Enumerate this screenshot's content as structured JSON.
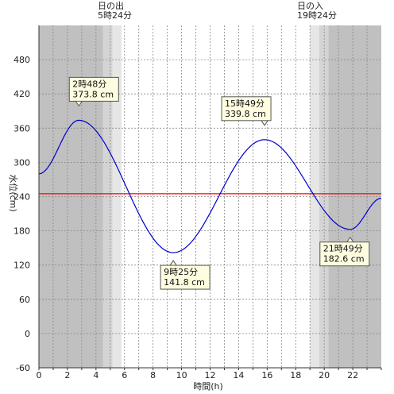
{
  "chart_data": {
    "type": "line",
    "xlabel": "時間(h)",
    "ylabel": "水位(cm)",
    "xlim": [
      0,
      24
    ],
    "ylim": [
      -60,
      540
    ],
    "x_ticks": [
      "0",
      "2",
      "4",
      "6",
      "8",
      "10",
      "12",
      "14",
      "16",
      "18",
      "20",
      "22"
    ],
    "y_ticks": [
      "-60",
      "0",
      "60",
      "120",
      "180",
      "240",
      "300",
      "360",
      "420",
      "480"
    ],
    "grid": true,
    "reference_line": {
      "value": 245,
      "color": "#ff0000"
    },
    "sunrise": {
      "label": "日の出",
      "time_label": "5時24分",
      "hour": 5.4
    },
    "sunset": {
      "label": "日の入",
      "time_label": "19時24分",
      "hour": 19.4
    },
    "extremes": [
      {
        "kind": "high",
        "hour": 2.8,
        "value": 373.8,
        "time_label": "2時48分",
        "value_label": "373.8 cm"
      },
      {
        "kind": "low",
        "hour": 9.4167,
        "value": 141.8,
        "time_label": "9時25分",
        "value_label": "141.8 cm"
      },
      {
        "kind": "high",
        "hour": 15.8167,
        "value": 339.8,
        "time_label": "15時49分",
        "value_label": "339.8 cm"
      },
      {
        "kind": "low",
        "hour": 21.8167,
        "value": 182.6,
        "time_label": "21時49分",
        "value_label": "182.6 cm"
      }
    ],
    "series": [
      {
        "line_color": "#0000cc",
        "x": [
          0,
          2.8,
          9.4167,
          15.8167,
          21.8167,
          24
        ],
        "y": [
          280,
          373.8,
          141.8,
          339.8,
          182.6,
          237
        ]
      }
    ]
  },
  "colors": {
    "night": "#c0c0c0",
    "twilight_dark": "#d4d4d4",
    "twilight_light": "#e6e6e6",
    "day": "#ffffff",
    "grid": "#888888",
    "series": "#0000cc",
    "reference": "#ff0000"
  }
}
